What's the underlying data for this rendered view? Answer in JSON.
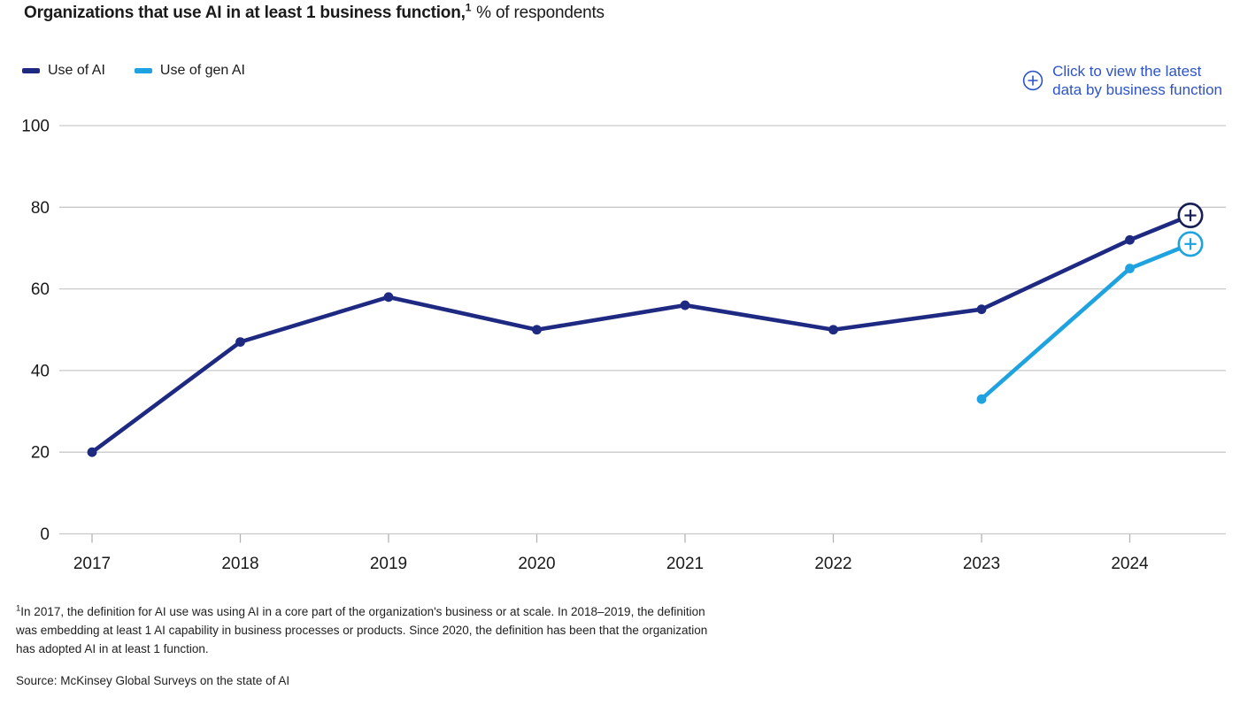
{
  "header": {
    "title_bold": "Organizations that use AI in at least 1 business function,",
    "title_sup": "1",
    "title_regular": "% of respondents"
  },
  "action_link": {
    "icon": "plus-circle-icon",
    "line1": "Click to view the latest",
    "line2": "data by business function",
    "color": "#2d53c8"
  },
  "chart_data": {
    "type": "line",
    "title": "Organizations that use AI in at least 1 business function, % of respondents",
    "x_labels": [
      "2017",
      "2018",
      "2019",
      "2020",
      "2021",
      "2022",
      "2023",
      "2024"
    ],
    "y_ticks": [
      0,
      20,
      40,
      60,
      80,
      100
    ],
    "ylim": [
      0,
      100
    ],
    "grid": "horizontal-only",
    "legend_position": "top-left",
    "gridline_color": "#c9c9c9",
    "tick_color": "#b3b3b3",
    "axis_label_color": "#1a1a1a",
    "series": [
      {
        "name": "Use of AI",
        "color": "#1e2a82",
        "marker_color": "#171f55",
        "start_year_index": 0,
        "values_by_year": [
          20,
          47,
          58,
          50,
          56,
          50,
          55,
          72
        ],
        "latest_value": 78,
        "end_marker": "plus-circle"
      },
      {
        "name": "Use of gen AI",
        "color": "#1fa3e0",
        "marker_color": "#1fa3e0",
        "start_year_index": 6,
        "values_by_year": [
          33,
          65
        ],
        "latest_value": 71,
        "end_marker": "plus-circle"
      }
    ]
  },
  "footnote": {
    "sup": "1",
    "lines": [
      "In 2017, the definition for AI use was using AI in a core part of the organization's business or at scale. In 2018–2019, the definition",
      "was embedding at least 1 AI capability in business processes or products. Since 2020, the definition has been that the organization",
      "has adopted AI in at least 1 function."
    ]
  },
  "source": "Source: McKinsey Global Surveys on the state of AI"
}
